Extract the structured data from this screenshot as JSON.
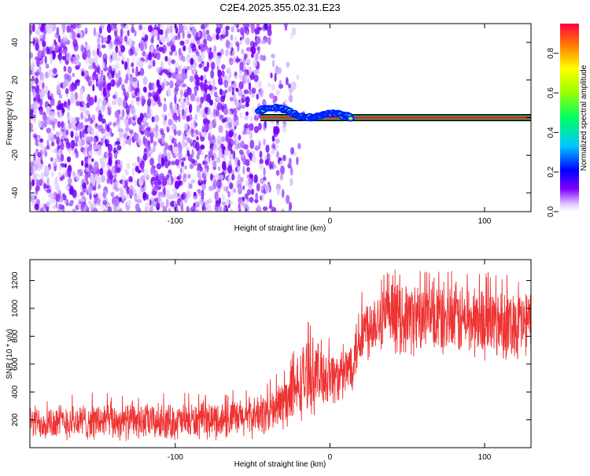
{
  "title": "C2E4.2025.355.02.31.E23",
  "chart_data": [
    {
      "type": "heatmap",
      "xlabel": "Height of straight line (km)",
      "ylabel": "Frequency (Hz)",
      "xlim": [
        -194,
        130
      ],
      "ylim": [
        -50,
        50
      ],
      "xticks": [
        -100,
        0,
        100
      ],
      "yticks": [
        -40,
        -20,
        0,
        20,
        40
      ],
      "colorbar": {
        "label": "Normalized spectral amplitude",
        "range": [
          0,
          0.95
        ],
        "ticks": [
          0.0,
          0.2,
          0.4,
          0.6,
          0.8
        ],
        "tick_labels": [
          "0.0",
          "0.2",
          "0.4",
          "0.6",
          "0.8"
        ]
      },
      "features": {
        "noise_region_x": [
          -194,
          -28
        ],
        "signal_line_start_x": -45,
        "signal_freq_hz": 0,
        "signal_trace": [
          [
            -46,
            4
          ],
          [
            -40,
            5
          ],
          [
            -32,
            5
          ],
          [
            -26,
            3
          ],
          [
            -20,
            1
          ],
          [
            -14,
            0
          ],
          [
            -8,
            1
          ],
          [
            -2,
            2
          ],
          [
            4,
            2
          ],
          [
            10,
            1
          ],
          [
            14,
            0
          ]
        ]
      }
    },
    {
      "type": "line",
      "xlabel": "Height of straight line (km)",
      "ylabel": "SNR (10 * v/v)",
      "xlim": [
        -194,
        130
      ],
      "ylim": [
        0,
        1350
      ],
      "xticks": [
        -100,
        0,
        100
      ],
      "yticks": [
        200,
        400,
        600,
        800,
        1000,
        1200
      ],
      "series": [
        {
          "name": "SNR",
          "color": "#ee3333",
          "envelope": [
            {
              "x": -194,
              "low": 40,
              "high": 320
            },
            {
              "x": -150,
              "low": 40,
              "high": 340
            },
            {
              "x": -100,
              "low": 40,
              "high": 330
            },
            {
              "x": -60,
              "low": 50,
              "high": 360
            },
            {
              "x": -40,
              "low": 70,
              "high": 420
            },
            {
              "x": -25,
              "low": 120,
              "high": 600
            },
            {
              "x": -15,
              "low": 200,
              "high": 850
            },
            {
              "x": 0,
              "low": 280,
              "high": 760
            },
            {
              "x": 8,
              "low": 300,
              "high": 700
            },
            {
              "x": 14,
              "low": 380,
              "high": 850
            },
            {
              "x": 20,
              "low": 550,
              "high": 1100
            },
            {
              "x": 30,
              "low": 660,
              "high": 1200
            },
            {
              "x": 50,
              "low": 640,
              "high": 1230
            },
            {
              "x": 80,
              "low": 620,
              "high": 1220
            },
            {
              "x": 110,
              "low": 600,
              "high": 1200
            },
            {
              "x": 130,
              "low": 600,
              "high": 1180
            }
          ]
        }
      ]
    }
  ]
}
